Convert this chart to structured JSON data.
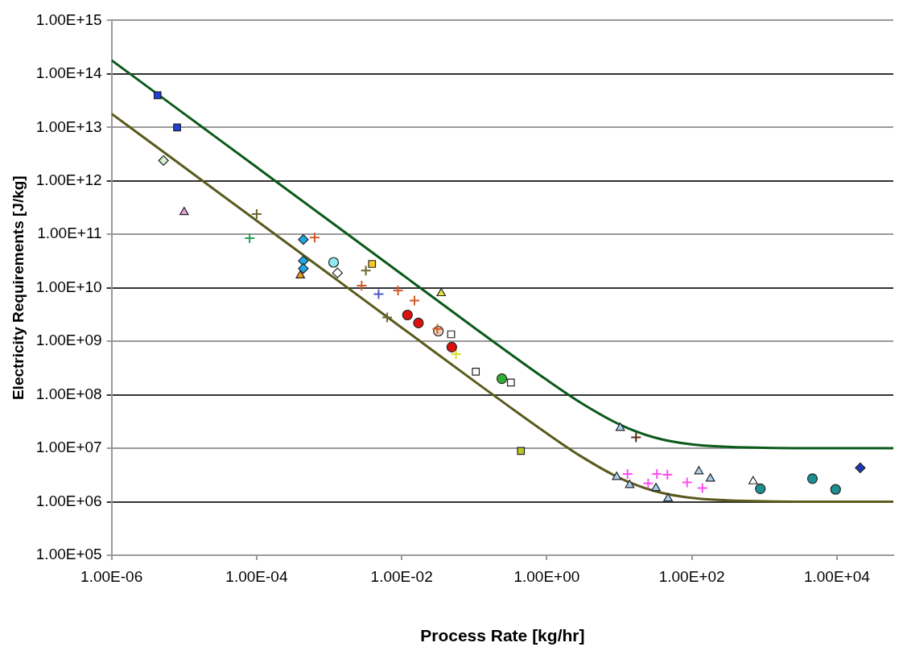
{
  "chart_data": {
    "type": "scatter",
    "xlabel": "Process Rate [kg/hr]",
    "ylabel": "Electricity Requirements [J/kg]",
    "log": "xy",
    "grid": "y",
    "legend": false,
    "xlim": [
      1e-06,
      60000.0
    ],
    "xticks": [
      {
        "value": 1e-06,
        "label": "1.00E-06"
      },
      {
        "value": 0.0001,
        "label": "1.00E-04"
      },
      {
        "value": 0.01,
        "label": "1.00E-02"
      },
      {
        "value": 1,
        "label": "1.00E+00"
      },
      {
        "value": 100,
        "label": "1.00E+02"
      },
      {
        "value": 10000.0,
        "label": "1.00E+04"
      }
    ],
    "ylim": [
      100000.0,
      1000000000000000.0
    ],
    "yticks": [
      {
        "value": 100000.0,
        "label": "1.00E+05"
      },
      {
        "value": 1000000.0,
        "label": "1.00E+06"
      },
      {
        "value": 10000000.0,
        "label": "1.00E+07"
      },
      {
        "value": 100000000.0,
        "label": "1.00E+08"
      },
      {
        "value": 1000000000.0,
        "label": "1.00E+09"
      },
      {
        "value": 10000000000.0,
        "label": "1.00E+10"
      },
      {
        "value": 100000000000.0,
        "label": "1.00E+11"
      },
      {
        "value": 1000000000000.0,
        "label": "1.00E+12"
      },
      {
        "value": 10000000000000.0,
        "label": "1.00E+13"
      },
      {
        "value": 100000000000000.0,
        "label": "1.00E+14"
      },
      {
        "value": 1000000000000000.0,
        "label": "1.00E+15"
      }
    ],
    "series": [
      {
        "type": "line",
        "color": "#0b5a1a",
        "marker": "none",
        "x": [
          1e-06,
          1e-05,
          0.0001,
          0.001,
          0.01,
          0.1,
          1,
          3,
          10,
          30,
          100,
          1000,
          10000.0,
          60000.0
        ],
        "values": [
          180000000000000.0,
          18000000000000.0,
          1800000000000.0,
          180000000000.0,
          18000000000.0,
          1800000000.0,
          190000000.0,
          70000000.0,
          28000000.0,
          16000000.0,
          11800000.0,
          10200000.0,
          10000000.0,
          10000000.0
        ]
      },
      {
        "type": "line",
        "color": "#5a5a1e",
        "marker": "none",
        "x": [
          1e-06,
          1e-05,
          0.0001,
          0.001,
          0.01,
          0.1,
          1,
          3,
          10,
          30,
          100,
          1000,
          10000.0,
          60000.0
        ],
        "values": [
          18000000000000.0,
          1800000000000.0,
          180000000000.0,
          18000000000.0,
          1800000000.0,
          180000000.0,
          19000000.0,
          7000000.0,
          2800000.0,
          1600000.0,
          1180000.0,
          1020000.0,
          1000000.0,
          1000000.0
        ]
      },
      {
        "color": "#1f3fe0",
        "marker": "square",
        "x": [
          4.3e-06,
          8e-06
        ],
        "values": [
          40000000000000.0,
          10000000000000.0
        ]
      },
      {
        "color": "#d4f5d0",
        "marker": "diamond",
        "x": [
          5.2e-06
        ],
        "values": [
          2400000000000.0
        ]
      },
      {
        "color": "#e8a0e0",
        "marker": "triangle",
        "x": [
          1e-05
        ],
        "values": [
          260000000000.0
        ]
      },
      {
        "color": "#2aa050",
        "marker": "cross",
        "x": [
          8e-05
        ],
        "values": [
          85000000000.0
        ]
      },
      {
        "color": "#6b6630",
        "marker": "cross",
        "x": [
          0.0001,
          0.0032,
          0.0063
        ],
        "values": [
          240000000000.0,
          21000000000.0,
          2800000000.0
        ]
      },
      {
        "color": "#1fa8e8",
        "marker": "diamond",
        "x": [
          0.00044,
          0.00044,
          0.00044
        ],
        "values": [
          80000000000.0,
          32000000000.0,
          23000000000.0
        ]
      },
      {
        "color": "#f5a020",
        "marker": "triangle",
        "x": [
          0.0004
        ],
        "values": [
          17000000000.0
        ]
      },
      {
        "color": "#d05a28",
        "marker": "cross",
        "x": [
          0.00063,
          0.0028,
          0.0089,
          0.015,
          0.031
        ],
        "values": [
          87000000000.0,
          11000000000.0,
          8900000000.0,
          5800000000.0,
          1700000000.0
        ]
      },
      {
        "color": "#8ee8f0",
        "marker": "circle",
        "x": [
          0.00115
        ],
        "values": [
          30000000000.0
        ]
      },
      {
        "color": "#ffffff",
        "marker": "diamond",
        "x": [
          0.0013
        ],
        "values": [
          19000000000.0
        ]
      },
      {
        "color": "#f5c828",
        "marker": "square",
        "x": [
          0.0039
        ],
        "values": [
          28000000000.0
        ]
      },
      {
        "color": "#4a5ac8",
        "marker": "cross",
        "x": [
          0.0048
        ],
        "values": [
          7600000000.0
        ]
      },
      {
        "color": "#e8e040",
        "marker": "triangle",
        "x": [
          0.035
        ],
        "values": [
          7900000000.0
        ]
      },
      {
        "color": "#e01010",
        "marker": "circle",
        "x": [
          0.012,
          0.017,
          0.049
        ],
        "values": [
          3100000000.0,
          2200000000.0,
          780000000.0
        ]
      },
      {
        "color": "#f0d0c0",
        "marker": "circle",
        "x": [
          0.032
        ],
        "values": [
          1550000000.0
        ]
      },
      {
        "color": "#ffffff",
        "marker": "square",
        "x": [
          0.048,
          0.105,
          0.32
        ],
        "values": [
          1350000000.0,
          270000000.0,
          170000000.0
        ]
      },
      {
        "color": "#d8e020",
        "marker": "cross",
        "x": [
          0.056
        ],
        "values": [
          580000000.0
        ]
      },
      {
        "color": "#30b030",
        "marker": "circle",
        "x": [
          0.24
        ],
        "values": [
          200000000.0
        ]
      },
      {
        "color": "#b8c820",
        "marker": "square",
        "x": [
          0.44
        ],
        "values": [
          8900000.0
        ]
      },
      {
        "color": "#a8d0f0",
        "marker": "triangle",
        "x": [
          10.3,
          9.2,
          13.9,
          32,
          47,
          125,
          180
        ],
        "values": [
          24000000.0,
          2900000.0,
          2050000.0,
          1800000.0,
          1150000.0,
          3700000.0,
          2700000.0
        ]
      },
      {
        "color": "#5a2a10",
        "marker": "cross",
        "x": [
          17
        ],
        "values": [
          16000000.0
        ]
      },
      {
        "color": "#ff50f0",
        "marker": "cross",
        "x": [
          13,
          25,
          33,
          46,
          86,
          140
        ],
        "values": [
          3300000.0,
          2200000.0,
          3300000.0,
          3200000.0,
          2300000.0,
          1800000.0
        ]
      },
      {
        "color": "#ffffff",
        "marker": "triangle",
        "x": [
          700
        ],
        "values": [
          2400000.0
        ]
      },
      {
        "color": "#1a9090",
        "marker": "circle",
        "x": [
          880,
          4600,
          9600
        ],
        "values": [
          1750000.0,
          2700000.0,
          1700000.0
        ]
      },
      {
        "color": "#1a3ab8",
        "marker": "diamond",
        "x": [
          21000
        ],
        "values": [
          4300000.0
        ]
      }
    ]
  }
}
